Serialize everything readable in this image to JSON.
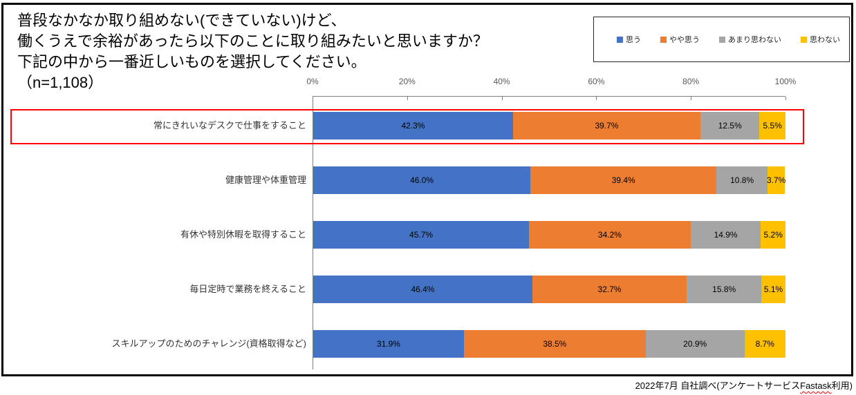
{
  "title": {
    "lines": [
      "普段なかなか取り組めない(できていない)けど、",
      "働くうえで余裕があったら以下のことに取り組みたいと思いますか？",
      "下記の中から一番近しいものを選択してください。",
      "（n=1,108）"
    ]
  },
  "legend": {
    "items": [
      {
        "label": "思う",
        "color": "#4472C4"
      },
      {
        "label": "やや思う",
        "color": "#ED7D31"
      },
      {
        "label": "あまり思わない",
        "color": "#A5A5A5"
      },
      {
        "label": "思わない",
        "color": "#FFC000"
      }
    ]
  },
  "axis": {
    "ticks": [
      "0%",
      "20%",
      "40%",
      "60%",
      "80%",
      "100%"
    ]
  },
  "chart_data": {
    "type": "bar",
    "orientation": "horizontal",
    "stacked": true,
    "title": "普段なかなか取り組めない(できていない)けど、働くうえで余裕があったら以下のことに取り組みたいと思いますか？下記の中から一番近しいものを選択してください。（n=1,108）",
    "sample_size": "n=1,108",
    "categories": [
      "常にきれいなデスクで仕事をすること",
      "健康管理や体重管理",
      "有休や特別休暇を取得すること",
      "毎日定時で業務を終えること",
      "スキルアップのためのチャレンジ(資格取得など)"
    ],
    "series": [
      {
        "name": "思う",
        "color": "#4472C4",
        "values": [
          42.3,
          46.0,
          45.7,
          46.4,
          31.9
        ]
      },
      {
        "name": "やや思う",
        "color": "#ED7D31",
        "values": [
          39.7,
          39.4,
          34.2,
          32.7,
          38.5
        ]
      },
      {
        "name": "あまり思わない",
        "color": "#A5A5A5",
        "values": [
          12.5,
          10.8,
          14.9,
          15.8,
          20.9
        ]
      },
      {
        "name": "思わない",
        "color": "#FFC000",
        "values": [
          5.5,
          3.7,
          5.2,
          5.1,
          8.7
        ]
      }
    ],
    "xlim": [
      0,
      100
    ],
    "x_tick_labels": [
      "0%",
      "20%",
      "40%",
      "60%",
      "80%",
      "100%"
    ],
    "value_label_suffix": "%",
    "legend_position": "top-right",
    "grid": false,
    "highlighted_category_index": 0,
    "highlight_color": "#FF0000"
  },
  "footer": {
    "prefix": "2022年7月 自社調べ(アンケートサービス",
    "spellcheck_word": "Fastask",
    "suffix": "利用)"
  },
  "colors": {
    "frame_border": "#000000",
    "axis_line": "#808080",
    "highlight_red": "#FF0000"
  }
}
